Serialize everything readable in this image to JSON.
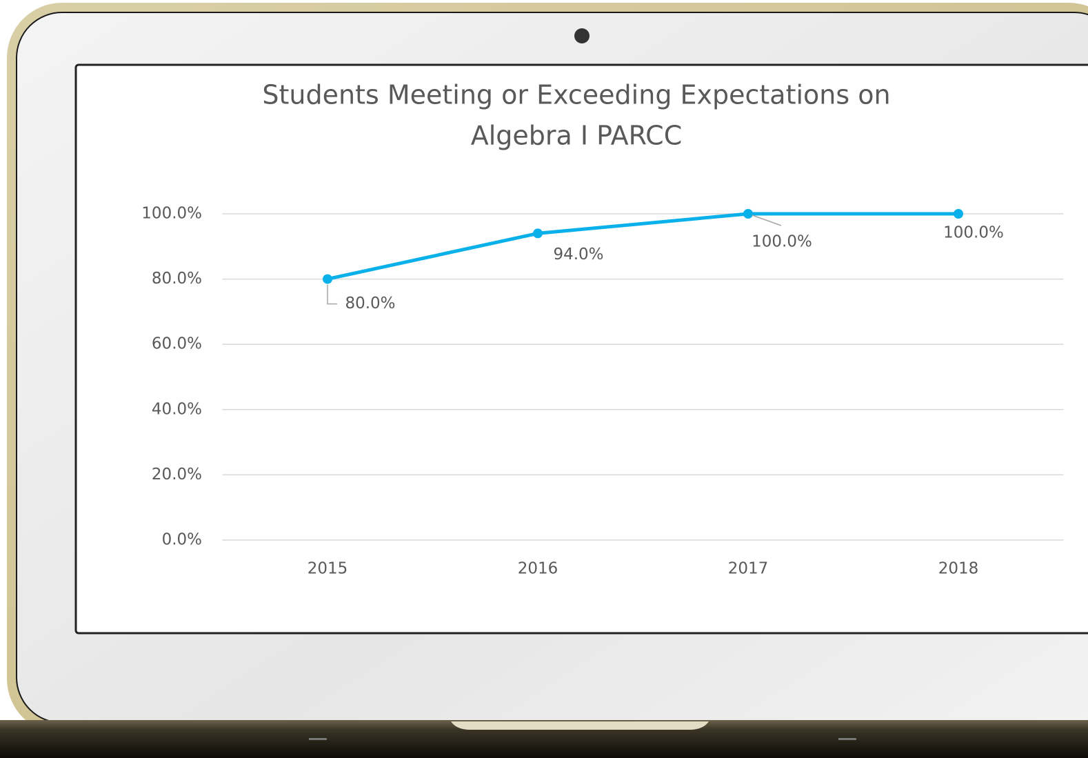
{
  "chart_data": {
    "type": "line",
    "title": [
      "Students Meeting or Exceeding Expectations on",
      "Algebra I PARCC"
    ],
    "categories": [
      "2015",
      "2016",
      "2017",
      "2018"
    ],
    "series": [
      {
        "color": "#0ab0ea",
        "values": [
          80,
          94,
          100,
          100
        ],
        "value_labels": [
          "80.0%",
          "94.0%",
          "100.0%",
          "100.0%"
        ]
      }
    ],
    "ylim": [
      0,
      100
    ],
    "yticks": [
      {
        "value": 0,
        "label": "0.0%"
      },
      {
        "value": 20,
        "label": "20.0%"
      },
      {
        "value": 40,
        "label": "40.0%"
      },
      {
        "value": 60,
        "label": "60.0%"
      },
      {
        "value": 80,
        "label": "80.0%"
      },
      {
        "value": 100,
        "label": "100.0%"
      }
    ],
    "grid": true
  }
}
